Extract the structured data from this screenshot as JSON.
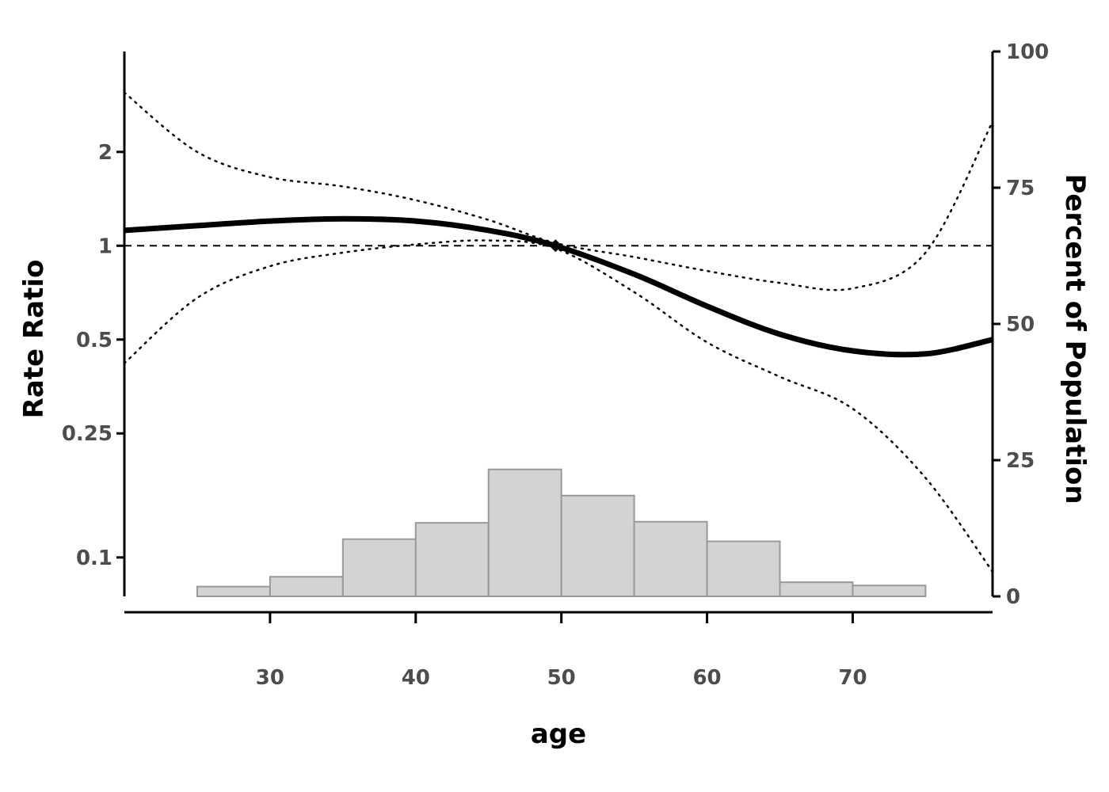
{
  "chart_data": {
    "type": "line",
    "xlabel": "age",
    "ylabel": "Rate Ratio",
    "y2label": "Percent of Population",
    "xlim": [
      20,
      79.6
    ],
    "ylim": [
      0.075,
      4.2
    ],
    "y_scale": "log",
    "y2lim": [
      0,
      100
    ],
    "x_ticks": [
      30,
      40,
      50,
      60,
      70
    ],
    "y_ticks": [
      {
        "value": 0.1,
        "label": "0.1"
      },
      {
        "value": 0.25,
        "label": "0.25"
      },
      {
        "value": 0.5,
        "label": "0.5"
      },
      {
        "value": 1,
        "label": "1"
      },
      {
        "value": 2,
        "label": "2"
      }
    ],
    "y2_ticks": [
      0,
      25,
      50,
      75,
      100
    ],
    "reference_value": 1,
    "reference_point": {
      "x": 49.6,
      "y": 1.0
    },
    "series": [
      {
        "role": "estimate",
        "x": [
          20,
          25,
          30,
          35,
          40,
          45,
          49.6,
          55,
          60,
          65,
          70,
          75,
          79.6
        ],
        "y": [
          1.12,
          1.16,
          1.2,
          1.22,
          1.2,
          1.12,
          1.0,
          0.81,
          0.64,
          0.52,
          0.46,
          0.45,
          0.5
        ]
      },
      {
        "role": "upper confidence limit",
        "x": [
          20,
          25,
          30,
          35,
          40,
          45,
          49.6,
          55,
          60,
          65,
          70,
          75,
          79.6
        ],
        "y": [
          3.1,
          2.0,
          1.66,
          1.55,
          1.4,
          1.21,
          1.02,
          0.92,
          0.83,
          0.76,
          0.73,
          0.95,
          2.5
        ]
      },
      {
        "role": "lower confidence limit",
        "x": [
          20,
          25,
          30,
          35,
          40,
          45,
          49.6,
          55,
          60,
          65,
          70,
          75,
          79.6
        ],
        "y": [
          0.42,
          0.68,
          0.86,
          0.95,
          1.01,
          1.04,
          0.98,
          0.71,
          0.49,
          0.38,
          0.3,
          0.18,
          0.09
        ]
      }
    ],
    "histogram": {
      "bins": [
        [
          25,
          30
        ],
        [
          30,
          35
        ],
        [
          35,
          40
        ],
        [
          40,
          45
        ],
        [
          45,
          50
        ],
        [
          50,
          55
        ],
        [
          55,
          60
        ],
        [
          60,
          65
        ],
        [
          65,
          70
        ],
        [
          70,
          75
        ]
      ],
      "percent": [
        1.8,
        3.6,
        10.5,
        13.5,
        23.3,
        18.5,
        13.7,
        10.1,
        2.6,
        2.0
      ]
    },
    "grid": false,
    "legend": "none"
  }
}
